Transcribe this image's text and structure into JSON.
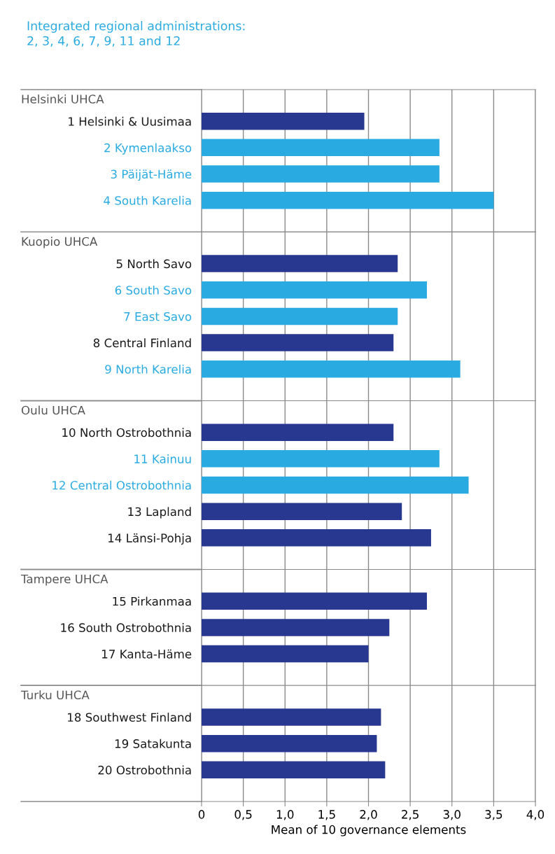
{
  "chart_data": [
    {
      "type": "bar",
      "orientation": "horizontal",
      "title": "Helsinki UHCA",
      "annotations": [
        "Integrated regional administrations:\n2, 3, 4, 6, 7, 9, 11 and 12"
      ],
      "categories": [
        "1 Helsinki & Uusimaa",
        "2 Kymenlaakso",
        "3 Päijät-Häme",
        "4 South Karelia"
      ],
      "values": [
        1.95,
        2.85,
        2.85,
        3.5
      ],
      "colors": [
        "#283891",
        "#29abe2",
        "#29abe2",
        "#29abe2"
      ],
      "xlim": [
        0,
        4
      ],
      "xticks": [
        0,
        0.5,
        1,
        1.5,
        2,
        2.5,
        3,
        3.5,
        4
      ],
      "grid": "x",
      "tick_labels": "y"
    },
    {
      "type": "bar",
      "orientation": "horizontal",
      "title": "Kuopio UHCA",
      "categories": [
        "5 North Savo",
        "6 South Savo",
        "7 East Savo",
        "8 Central Finland",
        "9 North Karelia"
      ],
      "values": [
        2.35,
        2.7,
        2.35,
        2.3,
        3.1
      ],
      "colors": [
        "#283891",
        "#29abe2",
        "#29abe2",
        "#283891",
        "#29abe2"
      ],
      "xlim": [
        0,
        4
      ],
      "xticks": [
        0,
        0.5,
        1,
        1.5,
        2,
        2.5,
        3,
        3.5,
        4
      ],
      "grid": "x",
      "tick_labels": "y"
    },
    {
      "type": "bar",
      "orientation": "horizontal",
      "title": "Oulu UHCA",
      "categories": [
        "10 North Ostrobothnia",
        "11 Kainuu",
        "12 Central Ostrobothnia",
        "13 Lapland",
        "14 Länsi-Pohja"
      ],
      "values": [
        2.3,
        2.85,
        3.2,
        2.4,
        2.75
      ],
      "colors": [
        "#283891",
        "#29abe2",
        "#29abe2",
        "#283891",
        "#283891"
      ],
      "xlim": [
        0,
        4
      ],
      "xticks": [
        0,
        0.5,
        1,
        1.5,
        2,
        2.5,
        3,
        3.5,
        4
      ],
      "grid": "x",
      "tick_labels": "y"
    },
    {
      "type": "bar",
      "orientation": "horizontal",
      "title": "Tampere UHCA",
      "categories": [
        "15 Pirkanmaa",
        "16 South Ostrobothnia",
        "17 Kanta-Häme"
      ],
      "values": [
        2.7,
        2.25,
        2.0
      ],
      "colors": [
        "#283891",
        "#283891",
        "#283891"
      ],
      "xlim": [
        0,
        4
      ],
      "xticks": [
        0,
        0.5,
        1,
        1.5,
        2,
        2.5,
        3,
        3.5,
        4
      ],
      "grid": "x",
      "tick_labels": "y"
    },
    {
      "type": "bar",
      "orientation": "horizontal",
      "title": "Turku UHCA",
      "xlabel": "Mean of 10 governance elements",
      "categories": [
        "18 Southwest Finland",
        "19 Satakunta",
        "20 Ostrobothnia"
      ],
      "values": [
        2.15,
        2.1,
        2.2
      ],
      "colors": [
        "#283891",
        "#283891",
        "#283891"
      ],
      "xlim": [
        0,
        4
      ],
      "xticks": [
        0,
        {
          "value": 0.5,
          "label": "0,5"
        },
        {
          "value": 1,
          "label": "1,0"
        },
        {
          "value": 1.5,
          "label": "1,5"
        },
        {
          "value": 2,
          "label": "2,0"
        },
        {
          "value": 2.5,
          "label": "2,5"
        },
        {
          "value": 3,
          "label": "3,0"
        },
        {
          "value": 3.5,
          "label": "3,5"
        },
        {
          "value": 4,
          "label": "4,0"
        }
      ],
      "grid": "x"
    }
  ]
}
